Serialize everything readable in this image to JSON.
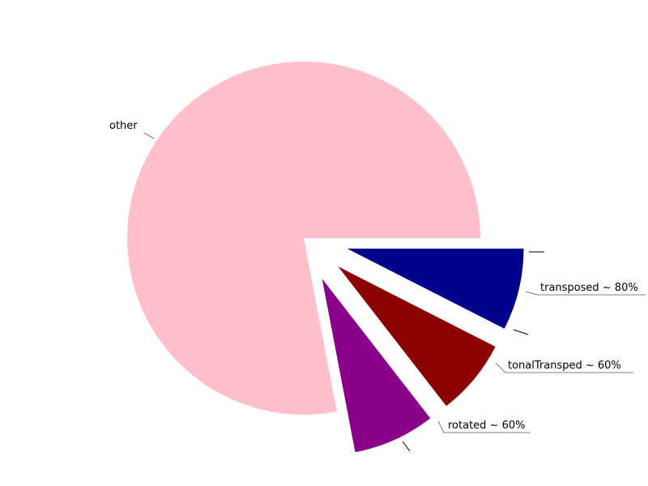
{
  "chart_data": {
    "type": "pie",
    "title": "",
    "start_angle_deg": 0,
    "direction": "clockwise",
    "slices": [
      {
        "label": "transposed ~ 80%",
        "value": 7.5,
        "color": "#00008B",
        "exploded": true
      },
      {
        "label": "tonalTransped ~ 60%",
        "value": 7.0,
        "color": "#8B0000",
        "exploded": true
      },
      {
        "label": "rotated ~ 60%",
        "value": 7.5,
        "color": "#8B008B",
        "exploded": true
      },
      {
        "label": "other",
        "value": 78.0,
        "color": "#FFC0CB",
        "exploded": false
      }
    ]
  }
}
